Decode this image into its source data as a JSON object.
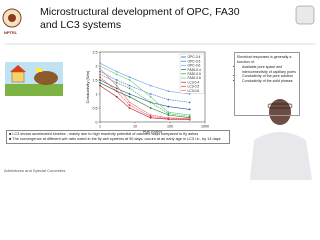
{
  "header": {
    "logo": "NPTEL",
    "title": "Microstructural development of OPC, FA30 and LC3 systems"
  },
  "chart_data": {
    "type": "line",
    "x_label": "Age (days)",
    "y_label": "Conductivity (S/m)",
    "x": [
      1,
      3,
      7,
      28,
      90,
      365
    ],
    "xscale": "log",
    "xlim": [
      1,
      1000
    ],
    "xticks": [
      1,
      10,
      100,
      1000
    ],
    "ylim": [
      0,
      2.5
    ],
    "yticks": [
      0,
      0.5,
      1,
      1.5,
      2,
      2.5
    ],
    "legend": "upper right",
    "series": [
      {
        "name": "OPC-0.4",
        "color": "#1f4e9c",
        "values": [
          1.5,
          1.2,
          1.0,
          0.7,
          0.55,
          0.45
        ]
      },
      {
        "name": "OPC-0.5",
        "color": "#2f6fd0",
        "values": [
          1.8,
          1.5,
          1.3,
          1.0,
          0.8,
          0.7
        ]
      },
      {
        "name": "OPC-0.6",
        "color": "#6fa0ea",
        "values": [
          2.1,
          1.8,
          1.6,
          1.3,
          1.1,
          1.0
        ]
      },
      {
        "name": "FA30-0.4",
        "color": "#1b7a2e",
        "values": [
          1.4,
          1.1,
          0.9,
          0.5,
          0.25,
          0.15
        ]
      },
      {
        "name": "FA30-0.5",
        "color": "#2ea043",
        "values": [
          1.7,
          1.4,
          1.2,
          0.7,
          0.3,
          0.2
        ]
      },
      {
        "name": "FA30-0.6",
        "color": "#6cc96e",
        "values": [
          2.0,
          1.7,
          1.5,
          0.9,
          0.35,
          0.25
        ]
      },
      {
        "name": "LC3-0.4",
        "color": "#b71c1c",
        "values": [
          1.3,
          0.9,
          0.5,
          0.15,
          0.1,
          0.08
        ]
      },
      {
        "name": "LC3-0.5",
        "color": "#e53935",
        "values": [
          1.6,
          1.1,
          0.6,
          0.2,
          0.12,
          0.1
        ]
      },
      {
        "name": "LC3-0.6",
        "color": "#f06292",
        "values": [
          1.9,
          1.3,
          0.7,
          0.25,
          0.15,
          0.12
        ]
      }
    ]
  },
  "notes": {
    "heading": "Electrical responses is generally a function of:",
    "items": [
      "Available pore space and interconnectivity of capillary pores",
      "Conductivity of the pore solution",
      "Conductivity of the solid phases"
    ]
  },
  "bullets": [
    "LC3 shows accelerated kinetics - mainly due to high reactivity potential of calcined clays compared to fly ashes",
    "The convergence at different w/b ratio noted in the fly ash systems at 90 days, occurs at an early age in LC3 i.e., by 14 days"
  ],
  "footer": "Admixtures and Special Concretes"
}
